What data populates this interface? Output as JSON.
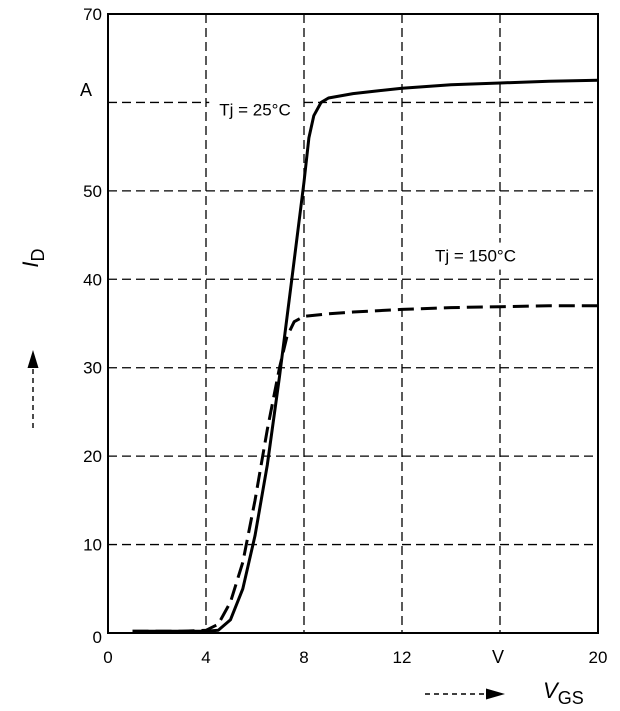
{
  "chart_data": {
    "type": "line",
    "title": "",
    "xlabel": {
      "symbol": "V",
      "subscript": "GS"
    },
    "ylabel": {
      "symbol": "I",
      "subscript": "D"
    },
    "x_unit": "V",
    "y_unit": "A",
    "xlim": [
      0,
      20
    ],
    "ylim": [
      0,
      70
    ],
    "x_ticks": [
      "0",
      "4",
      "8",
      "12",
      "",
      "20"
    ],
    "y_ticks": [
      "0",
      "10",
      "20",
      "30",
      "40",
      "50",
      "",
      "70"
    ],
    "grid": true,
    "series": [
      {
        "name": "Tj = 25°C",
        "style": "solid",
        "x": [
          1,
          2,
          3,
          4,
          4.5,
          5,
          5.5,
          6,
          6.5,
          7,
          7.5,
          8,
          8.2,
          8.4,
          8.7,
          9,
          10,
          11,
          12,
          14,
          16,
          18,
          20
        ],
        "y": [
          0.2,
          0.2,
          0.2,
          0.2,
          0.3,
          1.5,
          5,
          11,
          19,
          29,
          40,
          51,
          56,
          58.5,
          60,
          60.5,
          61,
          61.3,
          61.6,
          62,
          62.2,
          62.4,
          62.5
        ]
      },
      {
        "name": "Tj = 150°C",
        "style": "dashed",
        "x": [
          1,
          2,
          3,
          4,
          4.5,
          5,
          5.5,
          6,
          6.5,
          7,
          7.3,
          7.6,
          8,
          9,
          10,
          12,
          14,
          16,
          18,
          20
        ],
        "y": [
          0.2,
          0.2,
          0.2,
          0.3,
          1,
          3.5,
          8,
          15,
          23,
          30,
          33.5,
          35.2,
          35.8,
          36.1,
          36.3,
          36.6,
          36.8,
          36.9,
          37,
          37
        ]
      }
    ],
    "annotations": [
      {
        "text": "Tj = 25°C",
        "x": 6,
        "y": 58.5
      },
      {
        "text": "Tj = 150°C",
        "x": 15,
        "y": 42
      }
    ]
  },
  "icons": [
    "y-direction-arrow-icon",
    "x-direction-arrow-icon"
  ]
}
